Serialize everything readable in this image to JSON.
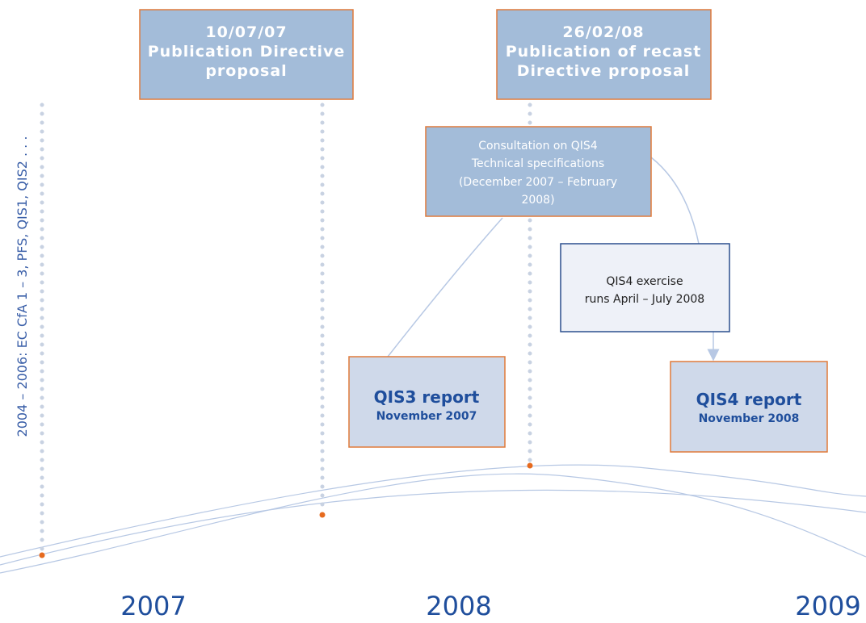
{
  "side_note": "2004 – 2006: EC CfA 1 – 3, PFS, QIS1, QIS2 . . .",
  "milestones": [
    {
      "date": "10/07/07",
      "lines": [
        "Publication Directive",
        "proposal"
      ]
    },
    {
      "date": "26/02/08",
      "lines": [
        "Publication of recast",
        "Directive proposal"
      ]
    }
  ],
  "consultation": {
    "lines": [
      "Consultation on QIS4",
      "Technical specifications",
      "(December 2007 – February",
      "2008)"
    ]
  },
  "exercise": {
    "lines": [
      "QIS4 exercise",
      "runs April – July 2008"
    ]
  },
  "reports": [
    {
      "title": "QIS3 report",
      "date": "November 2007"
    },
    {
      "title": "QIS4 report",
      "date": "November 2008"
    }
  ],
  "years": [
    "2007",
    "2008",
    "2009"
  ]
}
